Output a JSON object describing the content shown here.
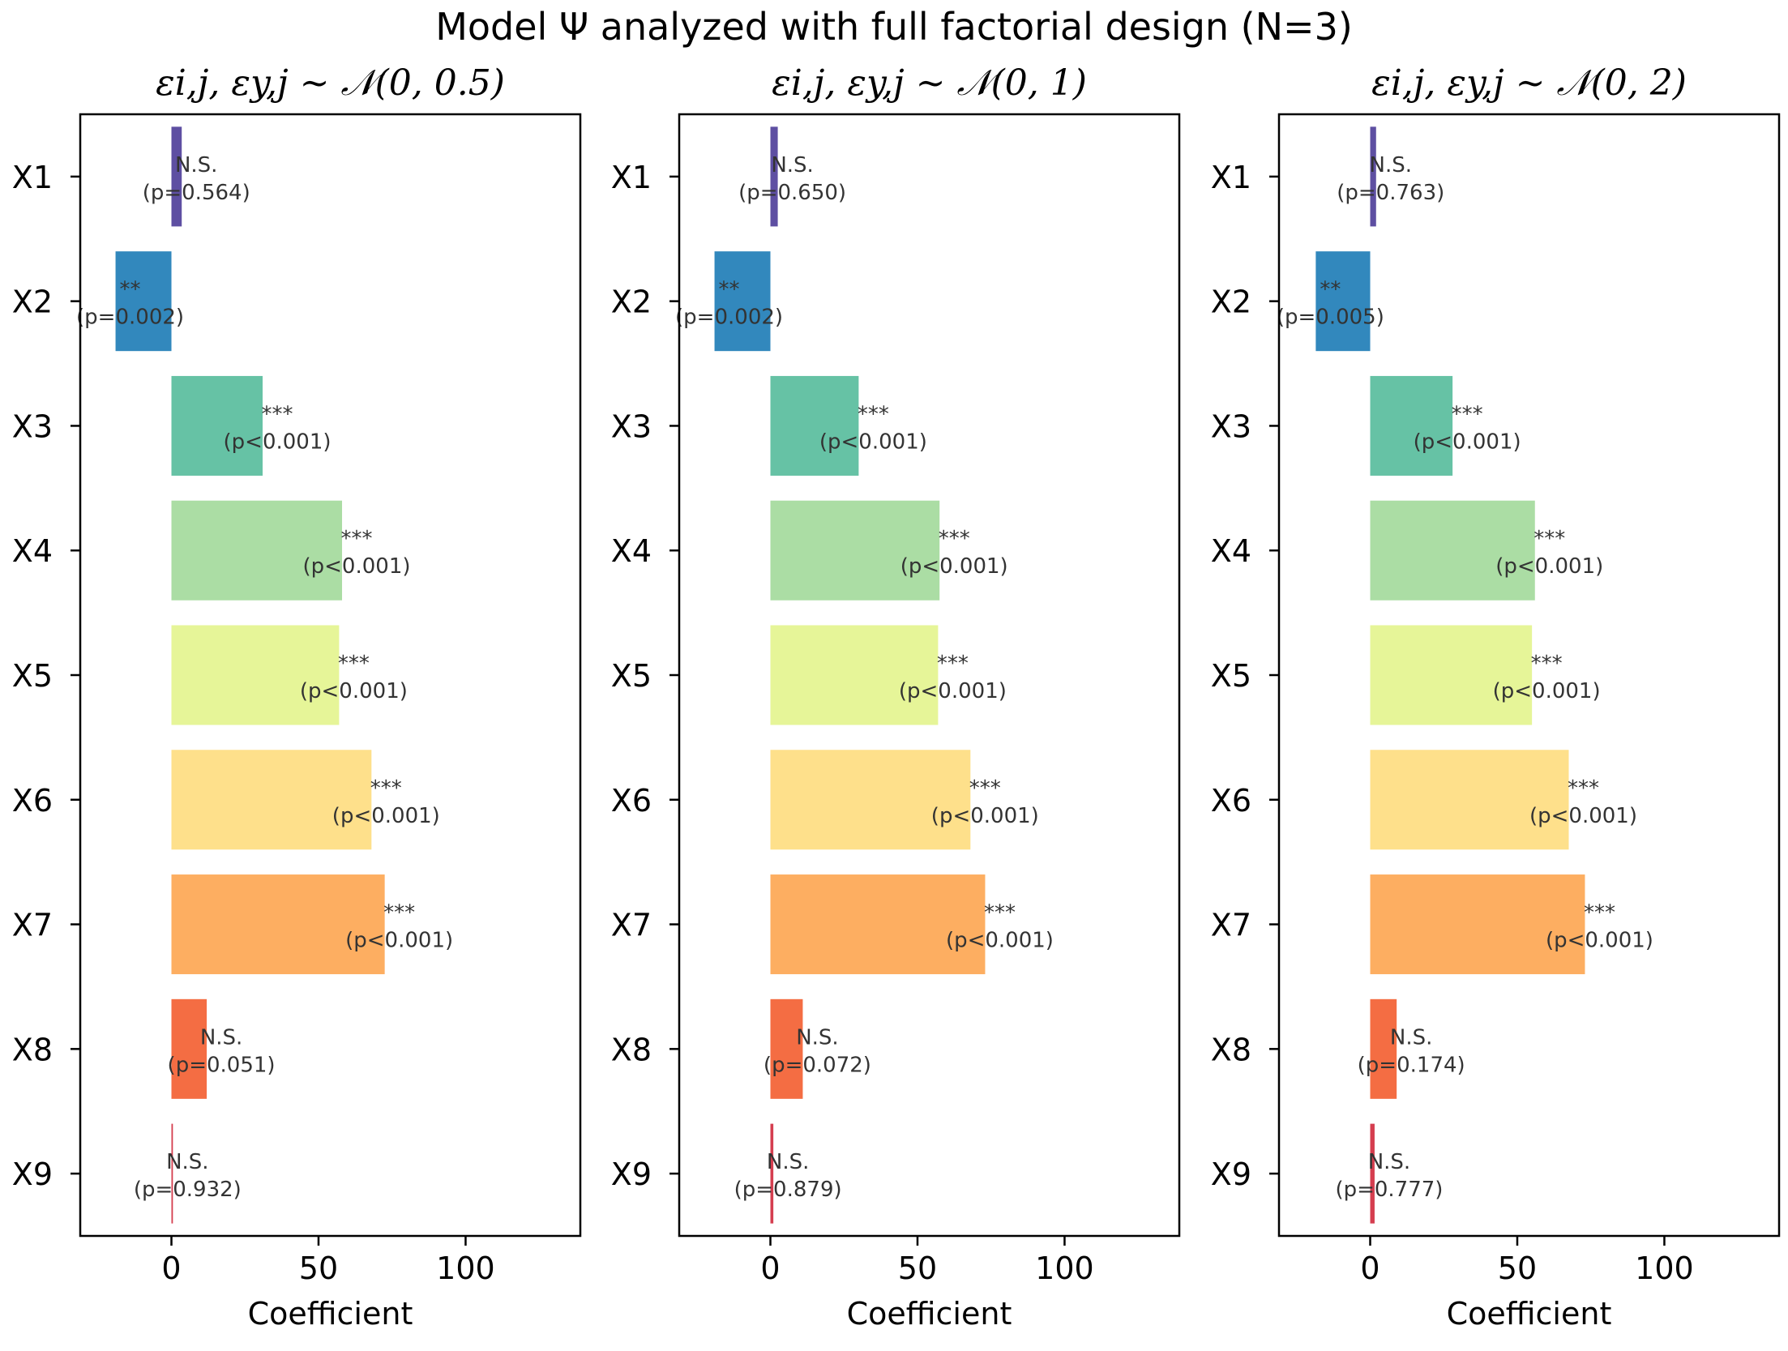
{
  "suptitle": "Model Ψ analyzed with full factorial design (N=3)",
  "colors": [
    "#5e4fa2",
    "#3288bd",
    "#66c2a5",
    "#abdda4",
    "#e6f598",
    "#fee08b",
    "#fdae61",
    "#f46d43",
    "#d53e4f"
  ],
  "chart_data": [
    {
      "type": "bar",
      "orientation": "horizontal",
      "title": "ε_{i,j}, ε_{y,j} ~ 𝒩(0, 0.5)",
      "title_plain": "εi,j, εy,j ∼ 𝒩(0, 0.5)",
      "xlabel": "Coefficient",
      "xlim": [
        -31,
        139
      ],
      "xticks": [
        0,
        50,
        100
      ],
      "categories": [
        "X1",
        "X2",
        "X3",
        "X4",
        "X5",
        "X6",
        "X7",
        "X8",
        "X9"
      ],
      "values": [
        3.5,
        -19,
        31,
        58,
        57,
        68,
        72.5,
        12,
        0.5
      ],
      "significance": [
        "N.S.",
        "**",
        "***",
        "***",
        "***",
        "***",
        "***",
        "N.S.",
        "N.S."
      ],
      "p_labels": [
        "(p=0.564)",
        "(p=0.002)",
        "(p<0.001)",
        "(p<0.001)",
        "(p<0.001)",
        "(p<0.001)",
        "(p<0.001)",
        "(p=0.051)",
        "(p=0.932)"
      ]
    },
    {
      "type": "bar",
      "orientation": "horizontal",
      "title": "ε_{i,j}, ε_{y,j} ~ 𝒩(0, 1)",
      "title_plain": "εi,j, εy,j ∼ 𝒩(0, 1)",
      "xlabel": "Coefficient",
      "xlim": [
        -31,
        139
      ],
      "xticks": [
        0,
        50,
        100
      ],
      "categories": [
        "X1",
        "X2",
        "X3",
        "X4",
        "X5",
        "X6",
        "X7",
        "X8",
        "X9"
      ],
      "values": [
        2.5,
        -19,
        30,
        57.5,
        57,
        68,
        73,
        11,
        1
      ],
      "significance": [
        "N.S.",
        "**",
        "***",
        "***",
        "***",
        "***",
        "***",
        "N.S.",
        "N.S."
      ],
      "p_labels": [
        "(p=0.650)",
        "(p=0.002)",
        "(p<0.001)",
        "(p<0.001)",
        "(p<0.001)",
        "(p<0.001)",
        "(p<0.001)",
        "(p=0.072)",
        "(p=0.879)"
      ]
    },
    {
      "type": "bar",
      "orientation": "horizontal",
      "title": "ε_{i,j}, ε_{y,j} ~ 𝒩(0, 2)",
      "title_plain": "εi,j, εy,j ∼ 𝒩(0, 2)",
      "xlabel": "Coefficient",
      "xlim": [
        -31,
        139
      ],
      "xticks": [
        0,
        50,
        100
      ],
      "categories": [
        "X1",
        "X2",
        "X3",
        "X4",
        "X5",
        "X6",
        "X7",
        "X8",
        "X9"
      ],
      "values": [
        2,
        -18.5,
        28,
        56,
        55,
        67.5,
        73,
        9,
        1.5
      ],
      "significance": [
        "N.S.",
        "**",
        "***",
        "***",
        "***",
        "***",
        "***",
        "N.S.",
        "N.S."
      ],
      "p_labels": [
        "(p=0.763)",
        "(p=0.005)",
        "(p<0.001)",
        "(p<0.001)",
        "(p<0.001)",
        "(p<0.001)",
        "(p<0.001)",
        "(p=0.174)",
        "(p=0.777)"
      ]
    }
  ]
}
